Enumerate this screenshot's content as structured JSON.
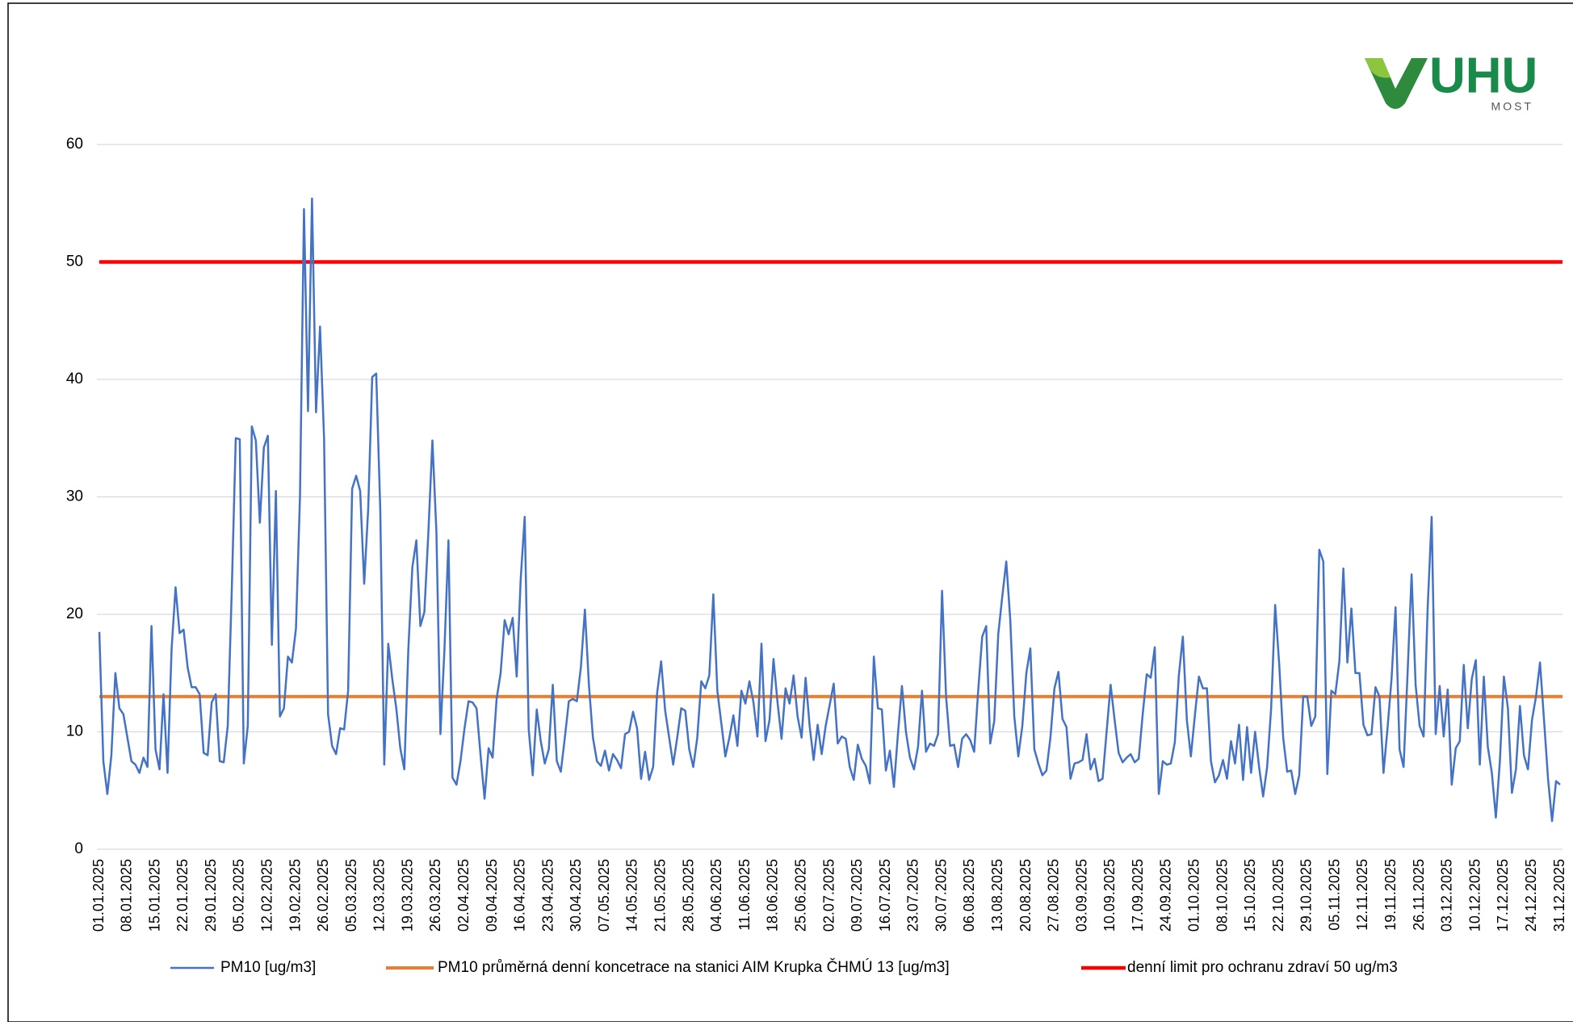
{
  "chart_data": {
    "type": "line",
    "logo": {
      "text": "UHU",
      "subtext": "MOST"
    },
    "categories": [
      "01.01.2025",
      null,
      null,
      null,
      null,
      null,
      null,
      "08.01.2025",
      null,
      null,
      null,
      null,
      null,
      null,
      "15.01.2025",
      null,
      null,
      null,
      null,
      null,
      null,
      "22.01.2025",
      null,
      null,
      null,
      null,
      null,
      null,
      "29.01.2025",
      null,
      null,
      null,
      null,
      null,
      null,
      "05.02.2025",
      null,
      null,
      null,
      null,
      null,
      null,
      "12.02.2025",
      null,
      null,
      null,
      null,
      null,
      null,
      "19.02.2025",
      null,
      null,
      null,
      null,
      null,
      null,
      "26.02.2025",
      null,
      null,
      null,
      null,
      null,
      null,
      "05.03.2025",
      null,
      null,
      null,
      null,
      null,
      null,
      "12.03.2025",
      null,
      null,
      null,
      null,
      null,
      null,
      "19.03.2025",
      null,
      null,
      null,
      null,
      null,
      null,
      "26.03.2025",
      null,
      null,
      null,
      null,
      null,
      null,
      "02.04.2025",
      null,
      null,
      null,
      null,
      null,
      null,
      "09.04.2025",
      null,
      null,
      null,
      null,
      null,
      null,
      "16.04.2025",
      null,
      null,
      null,
      null,
      null,
      null,
      "23.04.2025",
      null,
      null,
      null,
      null,
      null,
      null,
      "30.04.2025",
      null,
      null,
      null,
      null,
      null,
      null,
      "07.05.2025",
      null,
      null,
      null,
      null,
      null,
      null,
      "14.05.2025",
      null,
      null,
      null,
      null,
      null,
      null,
      "21.05.2025",
      null,
      null,
      null,
      null,
      null,
      null,
      "28.05.2025",
      null,
      null,
      null,
      null,
      null,
      null,
      "04.06.2025",
      null,
      null,
      null,
      null,
      null,
      null,
      "11.06.2025",
      null,
      null,
      null,
      null,
      null,
      null,
      "18.06.2025",
      null,
      null,
      null,
      null,
      null,
      null,
      "25.06.2025",
      null,
      null,
      null,
      null,
      null,
      null,
      "02.07.2025",
      null,
      null,
      null,
      null,
      null,
      null,
      "09.07.2025",
      null,
      null,
      null,
      null,
      null,
      null,
      "16.07.2025",
      null,
      null,
      null,
      null,
      null,
      null,
      "23.07.2025",
      null,
      null,
      null,
      null,
      null,
      null,
      "30.07.2025",
      null,
      null,
      null,
      null,
      null,
      null,
      "06.08.2025",
      null,
      null,
      null,
      null,
      null,
      null,
      "13.08.2025",
      null,
      null,
      null,
      null,
      null,
      null,
      "20.08.2025",
      null,
      null,
      null,
      null,
      null,
      null,
      "27.08.2025",
      null,
      null,
      null,
      null,
      null,
      null,
      "03.09.2025",
      null,
      null,
      null,
      null,
      null,
      null,
      "10.09.2025",
      null,
      null,
      null,
      null,
      null,
      null,
      "17.09.2025",
      null,
      null,
      null,
      null,
      null,
      null,
      "24.09.2025",
      null,
      null,
      null,
      null,
      null,
      null,
      "01.10.2025",
      null,
      null,
      null,
      null,
      null,
      null,
      "08.10.2025",
      null,
      null,
      null,
      null,
      null,
      null,
      "15.10.2025",
      null,
      null,
      null,
      null,
      null,
      null,
      "22.10.2025",
      null,
      null,
      null,
      null,
      null,
      null,
      "29.10.2025",
      null,
      null,
      null,
      null,
      null,
      null,
      "05.11.2025",
      null,
      null,
      null,
      null,
      null,
      null,
      "12.11.2025",
      null,
      null,
      null,
      null,
      null,
      null,
      "19.11.2025",
      null,
      null,
      null,
      null,
      null,
      null,
      "26.11.2025",
      null,
      null,
      null,
      null,
      null,
      null,
      "03.12.2025",
      null,
      null,
      null,
      null,
      null,
      null,
      "10.12.2025",
      null,
      null,
      null,
      null,
      null,
      null,
      "17.12.2025",
      null,
      null,
      null,
      null,
      null,
      null,
      "24.12.2025",
      null,
      null,
      null,
      null,
      null,
      null,
      "31.12.2025"
    ],
    "series": [
      {
        "name": "PM10 [ug/m3]",
        "color": "#4472c4",
        "values": [
          18.5,
          7.5,
          4.7,
          8,
          15,
          12,
          11.5,
          9.5,
          7.5,
          7.2,
          6.5,
          7.8,
          7,
          19,
          8.5,
          6.8,
          13.2,
          6.5,
          17,
          22.3,
          18.4,
          18.7,
          15.5,
          13.8,
          13.8,
          13.2,
          8.2,
          8,
          12.5,
          13.2,
          7.5,
          7.4,
          10.5,
          22,
          35,
          34.9,
          7.3,
          10.5,
          36,
          34.8,
          27.8,
          34.2,
          35.2,
          17.4,
          30.5,
          11.3,
          12,
          16.4,
          15.9,
          18.8,
          30,
          54.5,
          37.3,
          55.4,
          37.2,
          44.5,
          35,
          11.5,
          8.8,
          8.1,
          10.3,
          10.2,
          13.5,
          30.7,
          31.8,
          30.5,
          22.6,
          29,
          40.2,
          40.5,
          29,
          7.2,
          17.5,
          14.5,
          12,
          8.6,
          6.8,
          17,
          24,
          26.3,
          19,
          20.2,
          27,
          34.8,
          27,
          9.8,
          17,
          26.3,
          6.1,
          5.5,
          7.5,
          10.3,
          12.6,
          12.5,
          12,
          8,
          4.3,
          8.6,
          7.8,
          12.8,
          15,
          19.5,
          18.3,
          19.7,
          14.7,
          23,
          28.3,
          10.2,
          6.3,
          11.9,
          9.2,
          7.3,
          8.5,
          14,
          7.5,
          6.6,
          9.5,
          12.6,
          12.8,
          12.6,
          15.5,
          20.4,
          14,
          9.5,
          7.5,
          7.1,
          8.4,
          6.7,
          8.1,
          7.6,
          6.9,
          9.8,
          10,
          11.7,
          10.3,
          6,
          8.3,
          5.9,
          7,
          13.3,
          16,
          11.8,
          9.5,
          7.2,
          9.5,
          12,
          11.8,
          8.5,
          7,
          9.5,
          14.3,
          13.7,
          14.8,
          21.7,
          13.5,
          10.7,
          7.9,
          9.5,
          11.4,
          8.8,
          13.5,
          12.4,
          14.3,
          12.5,
          9.6,
          17.5,
          9.2,
          11,
          16.2,
          12.5,
          9.4,
          13.7,
          12.4,
          14.8,
          11.3,
          9.5,
          14.6,
          10.5,
          7.6,
          10.6,
          8.1,
          10.5,
          12.3,
          14.1,
          9,
          9.6,
          9.4,
          7,
          5.9,
          8.9,
          7.7,
          7.1,
          5.6,
          16.4,
          12,
          11.9,
          6.7,
          8.4,
          5.3,
          9.8,
          13.9,
          10,
          7.8,
          6.8,
          8.7,
          13.5,
          8.3,
          9,
          8.8,
          9.8,
          22,
          13,
          8.8,
          8.9,
          7,
          9.4,
          9.8,
          9.3,
          8.3,
          13.5,
          18.1,
          19,
          9,
          10.9,
          18.3,
          21.5,
          24.5,
          19.5,
          11.3,
          7.9,
          10.5,
          15,
          17.1,
          8.5,
          7.3,
          6.3,
          6.7,
          9.5,
          13.7,
          15.1,
          11.1,
          10.4,
          6,
          7.3,
          7.4,
          7.6,
          9.8,
          6.8,
          7.7,
          5.8,
          6,
          10,
          14,
          11,
          8.2,
          7.4,
          7.8,
          8.1,
          7.4,
          7.7,
          11.5,
          14.9,
          14.6,
          17.2,
          4.7,
          7.5,
          7.2,
          7.3,
          9.1,
          14.8,
          18.1,
          11,
          7.9,
          11.4,
          14.7,
          13.7,
          13.7,
          7.5,
          5.7,
          6.3,
          7.6,
          6,
          9.2,
          7.3,
          10.6,
          5.9,
          10.4,
          6.5,
          10,
          7,
          4.5,
          7,
          12,
          20.8,
          15.8,
          9.5,
          6.6,
          6.7,
          4.7,
          6.3,
          13,
          13,
          10.5,
          11.3,
          25.5,
          24.5,
          6.4,
          13.5,
          13.2,
          16,
          23.9,
          15.9,
          20.5,
          15,
          15,
          10.6,
          9.7,
          9.8,
          13.8,
          13,
          6.5,
          10.3,
          14.5,
          20.6,
          8.5,
          7,
          15,
          23.4,
          14,
          10.5,
          9.6,
          20.5,
          28.3,
          9.8,
          13.9,
          9.6,
          13.6,
          5.5,
          8.6,
          9.2,
          15.7,
          10.3,
          14.5,
          16.1,
          7.2,
          14.7,
          8.7,
          6.5,
          2.7,
          7.5,
          14.7,
          12,
          4.8,
          6.8,
          12.2,
          8,
          6.8,
          11,
          13,
          15.9,
          11,
          6,
          2.4,
          5.8,
          5.5
        ]
      }
    ],
    "reference_lines": [
      {
        "name": "PM10 průměrná denní  koncetrace na stanici AIM Krupka ČHMÚ 13 [ug/m3]",
        "color": "#ed7d31",
        "value": 13
      },
      {
        "name": "denní limit pro ochranu zdraví 50 ug/m3",
        "color": "#ff0000",
        "value": 50
      }
    ],
    "ylim": [
      0,
      70
    ],
    "yticks": [
      0,
      10,
      20,
      30,
      40,
      50,
      60
    ],
    "grid": true,
    "legend": "bottom"
  }
}
